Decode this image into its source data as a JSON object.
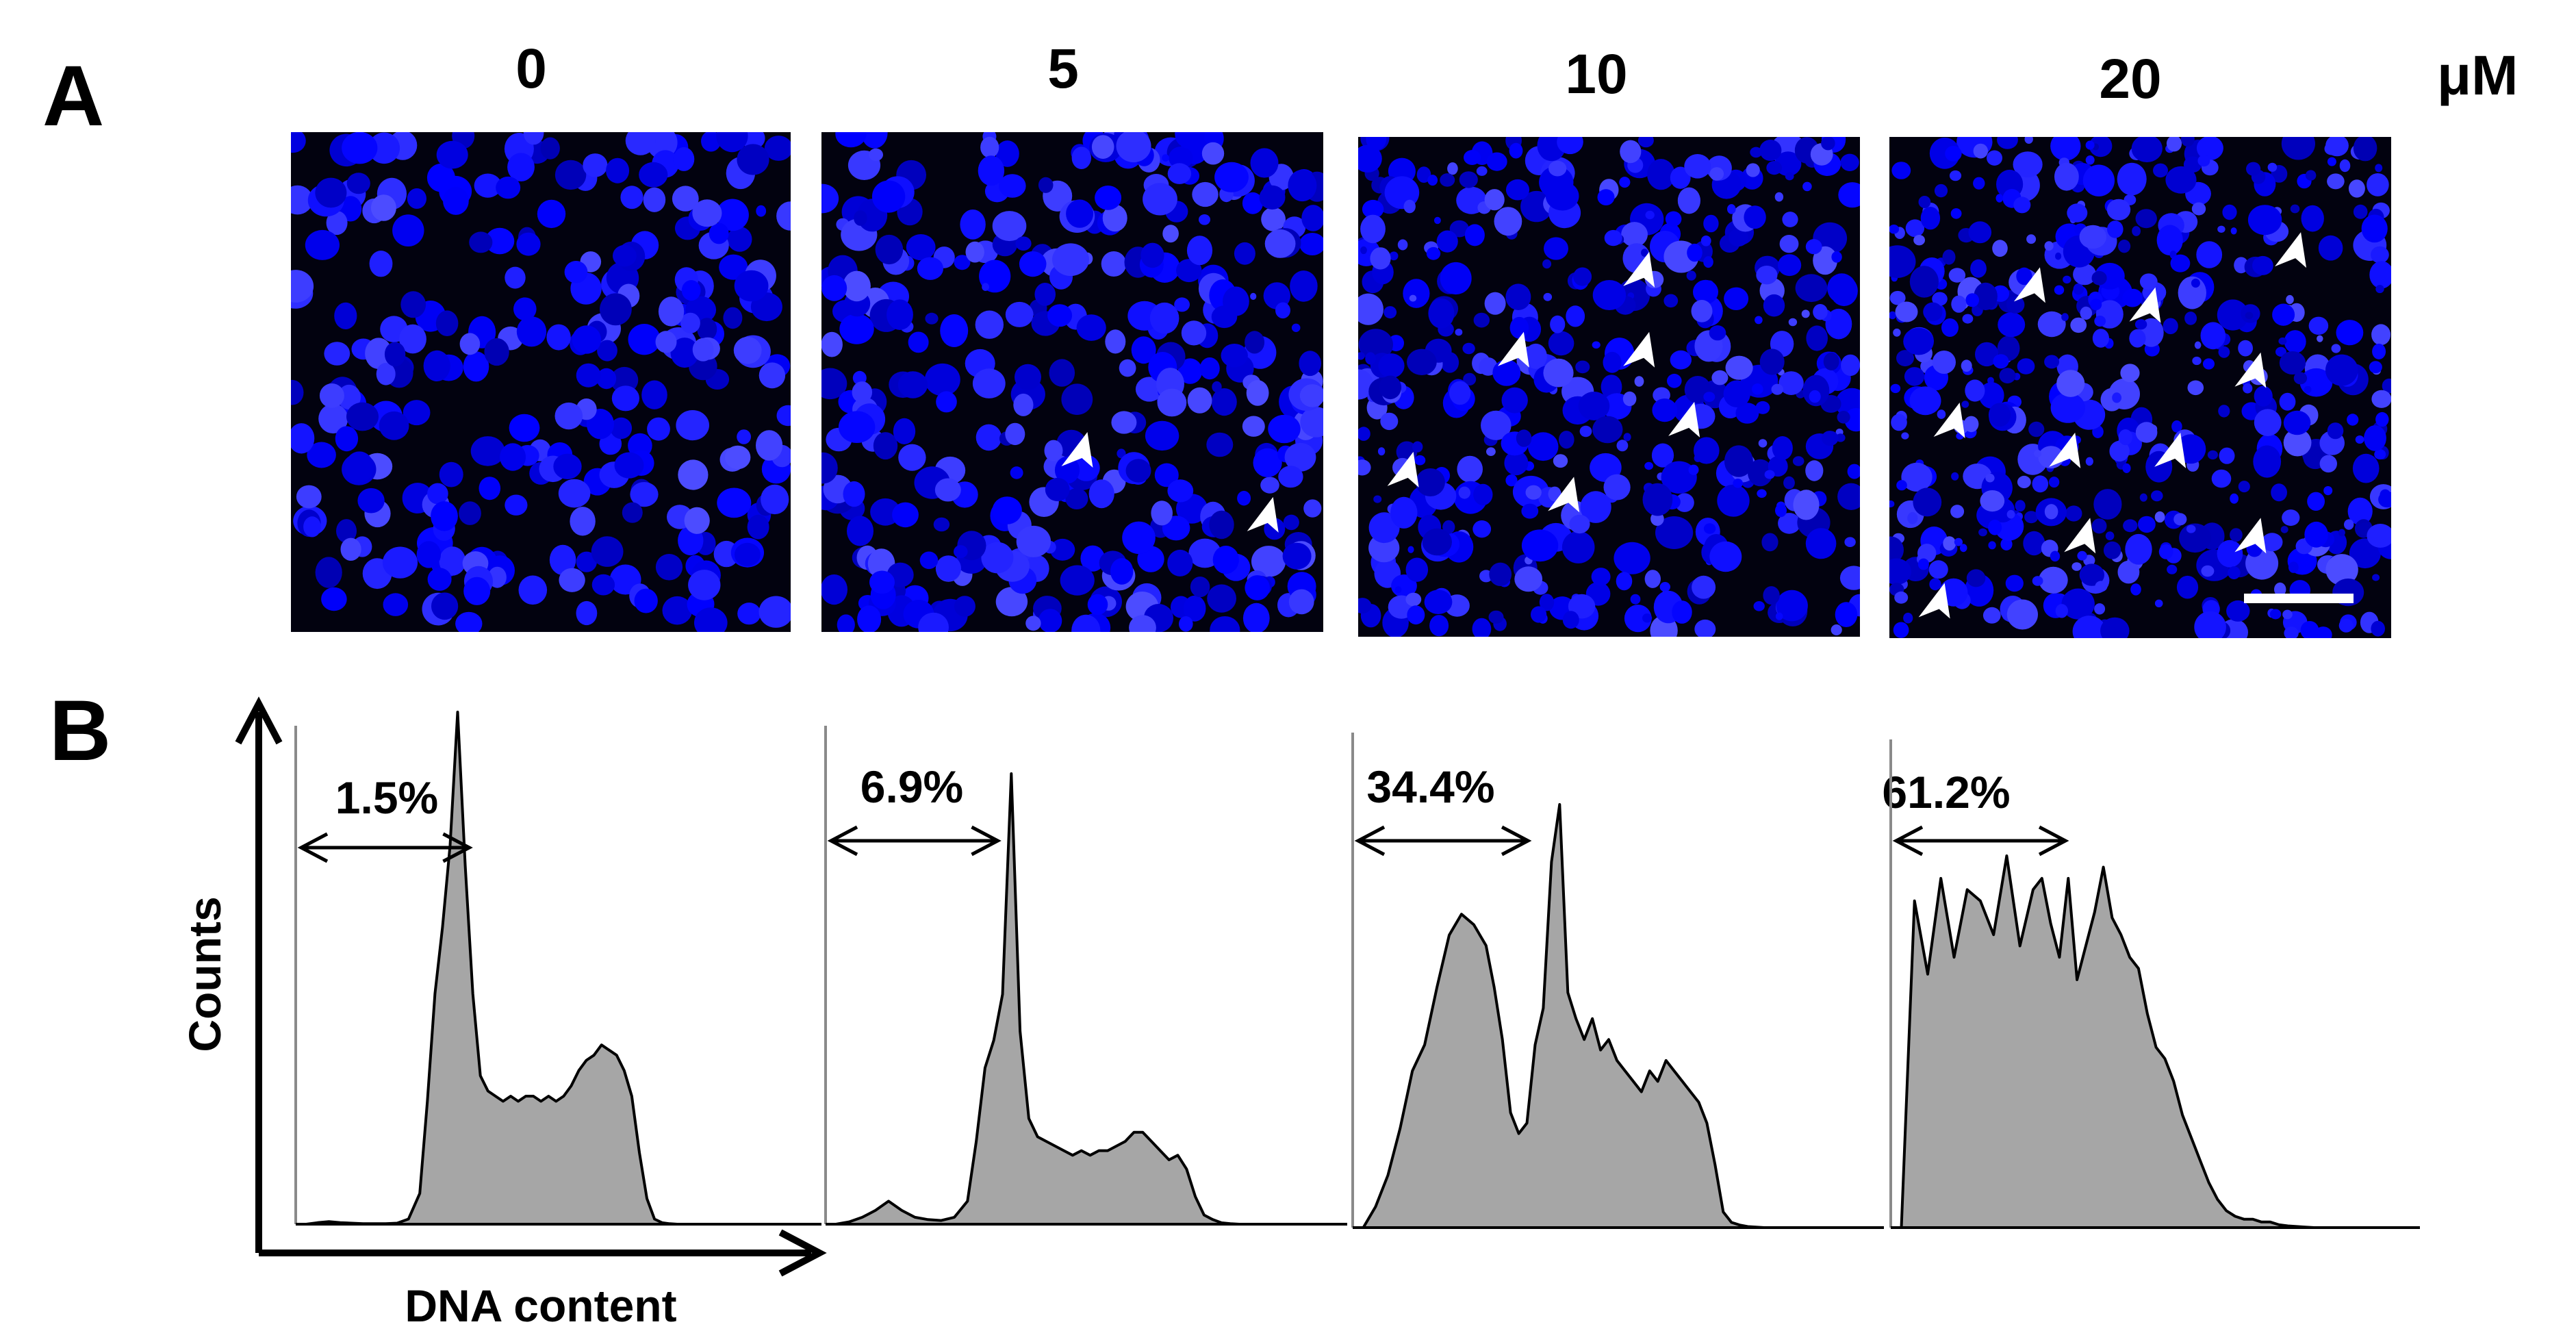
{
  "panel_a": {
    "label": "A",
    "unit": "μM",
    "images": [
      {
        "concentration": "0",
        "arrowheads": 0,
        "scale_bar": false
      },
      {
        "concentration": "5",
        "arrowheads": 2,
        "scale_bar": false
      },
      {
        "concentration": "10",
        "arrowheads": 6,
        "scale_bar": false
      },
      {
        "concentration": "20",
        "arrowheads": 10,
        "scale_bar": true
      }
    ],
    "colors": {
      "stain": "#1f1cff",
      "background": "#02020f",
      "arrowhead": "#ffffff"
    }
  },
  "panel_b": {
    "label": "B",
    "y_axis_label": "Counts",
    "x_axis_label": "DNA content",
    "fill_color": "#a6a6a6",
    "line_color": "#000000"
  },
  "chart_data": [
    {
      "type": "area",
      "concentration": "0",
      "annotation": "1.5%",
      "sub_g1_percent": 1.5,
      "x": [
        0,
        3,
        6,
        9,
        12,
        15,
        18,
        21,
        24,
        27,
        30,
        32,
        34,
        36,
        38,
        40,
        42,
        44,
        46,
        48,
        50,
        52,
        54,
        56,
        58,
        60,
        62,
        64,
        66,
        68,
        70,
        72,
        74,
        76,
        78,
        80,
        82,
        84,
        86,
        88,
        90,
        92,
        94,
        96,
        98,
        100
      ],
      "y": [
        0,
        0.3,
        0.5,
        0.3,
        0.2,
        0.1,
        0.1,
        0.1,
        0.2,
        1,
        6,
        24,
        45,
        58,
        74,
        100,
        70,
        45,
        29,
        26,
        25,
        24,
        25,
        24,
        25,
        25,
        24,
        25,
        24,
        25,
        27,
        30,
        32,
        33,
        35,
        34,
        33,
        30,
        25,
        14,
        5,
        1,
        0.3,
        0.1,
        0,
        0
      ]
    },
    {
      "type": "area",
      "concentration": "5",
      "annotation": "6.9%",
      "sub_g1_percent": 6.9,
      "x": [
        0,
        3,
        6,
        9,
        12,
        15,
        18,
        21,
        24,
        27,
        30,
        32,
        34,
        36,
        38,
        40,
        42,
        44,
        46,
        48,
        50,
        52,
        54,
        56,
        58,
        60,
        62,
        64,
        66,
        68,
        70,
        72,
        74,
        76,
        78,
        80,
        82,
        84,
        86,
        88,
        90,
        92,
        94,
        96,
        98,
        100
      ],
      "y": [
        0,
        0.5,
        1.5,
        3,
        5,
        3,
        1.5,
        1,
        0.8,
        1.5,
        5,
        18,
        34,
        40,
        50,
        98,
        42,
        23,
        19,
        18,
        17,
        16,
        15,
        16,
        15,
        16,
        16,
        17,
        18,
        20,
        20,
        18,
        16,
        14,
        15,
        12,
        6,
        2,
        1,
        0.3,
        0.1,
        0,
        0,
        0,
        0,
        0
      ]
    },
    {
      "type": "area",
      "concentration": "10",
      "annotation": "34.4%",
      "sub_g1_percent": 34.4,
      "x": [
        0,
        3,
        6,
        9,
        12,
        15,
        18,
        21,
        24,
        27,
        30,
        32,
        34,
        36,
        38,
        40,
        42,
        44,
        46,
        48,
        50,
        52,
        54,
        56,
        58,
        60,
        62,
        64,
        66,
        68,
        70,
        72,
        74,
        76,
        78,
        80,
        82,
        84,
        86,
        88,
        90,
        92,
        94,
        96,
        98,
        100
      ],
      "y": [
        0,
        4,
        10,
        19,
        30,
        35,
        46,
        56,
        60,
        58,
        54,
        46,
        36,
        22,
        18,
        20,
        35,
        42,
        70,
        81,
        45,
        40,
        36,
        40,
        34,
        36,
        32,
        30,
        28,
        26,
        30,
        28,
        32,
        30,
        28,
        26,
        24,
        20,
        12,
        3,
        1,
        0.5,
        0.2,
        0.1,
        0,
        0
      ]
    },
    {
      "type": "area",
      "concentration": "20",
      "annotation": "61.2%",
      "sub_g1_percent": 61.2,
      "x": [
        0,
        3,
        6,
        9,
        12,
        15,
        18,
        21,
        24,
        27,
        30,
        32,
        34,
        36,
        38,
        40,
        42,
        44,
        46,
        48,
        50,
        52,
        54,
        56,
        58,
        60,
        62,
        64,
        66,
        68,
        70,
        72,
        74,
        76,
        78,
        80,
        82,
        84,
        86,
        88,
        90,
        92,
        94,
        96,
        98,
        100
      ],
      "y": [
        0,
        58,
        45,
        62,
        48,
        60,
        58,
        52,
        66,
        50,
        60,
        62,
        54,
        48,
        62,
        44,
        50,
        56,
        64,
        55,
        52,
        48,
        46,
        38,
        32,
        30,
        26,
        20,
        16,
        12,
        8,
        5,
        3,
        2,
        1.5,
        1.5,
        1,
        1,
        0.5,
        0.3,
        0.2,
        0.1,
        0,
        0,
        0,
        0
      ]
    }
  ]
}
